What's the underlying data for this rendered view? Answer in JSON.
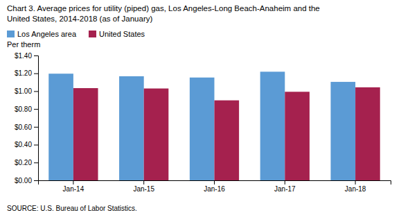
{
  "chart_data": {
    "type": "bar",
    "title": "Chart 3. Average prices for utility (piped) gas, Los Angeles-Long Beach-Anaheim and the",
    "subtitle": "United States, 2014-2018  (as of January)",
    "y_label": "Per therm",
    "annotations": [
      "SOURCE: U.S. Bureau of Labor Statistics."
    ],
    "categories": [
      "Jan-14",
      "Jan-15",
      "Jan-16",
      "Jan-17",
      "Jan-18"
    ],
    "series": [
      {
        "name": "Los Angeles area",
        "color": "#5B9BD5",
        "values": [
          1.196,
          1.167,
          1.153,
          1.218,
          1.104
        ]
      },
      {
        "name": "United States",
        "color": "#A5214E",
        "values": [
          1.034,
          1.03,
          0.897,
          0.993,
          1.043
        ]
      }
    ],
    "ylim": [
      0,
      1.4
    ],
    "yticks": [
      {
        "value": 0.0,
        "label": "$0.00"
      },
      {
        "value": 0.2,
        "label": "$0.20"
      },
      {
        "value": 0.4,
        "label": "$0.40"
      },
      {
        "value": 0.6,
        "label": "$0.60"
      },
      {
        "value": 0.8,
        "label": "$0.80"
      },
      {
        "value": 1.0,
        "label": "$1.00"
      },
      {
        "value": 1.2,
        "label": "$1.20"
      },
      {
        "value": 1.4,
        "label": "$1.40"
      }
    ],
    "legend": "top-left",
    "grid": false
  }
}
